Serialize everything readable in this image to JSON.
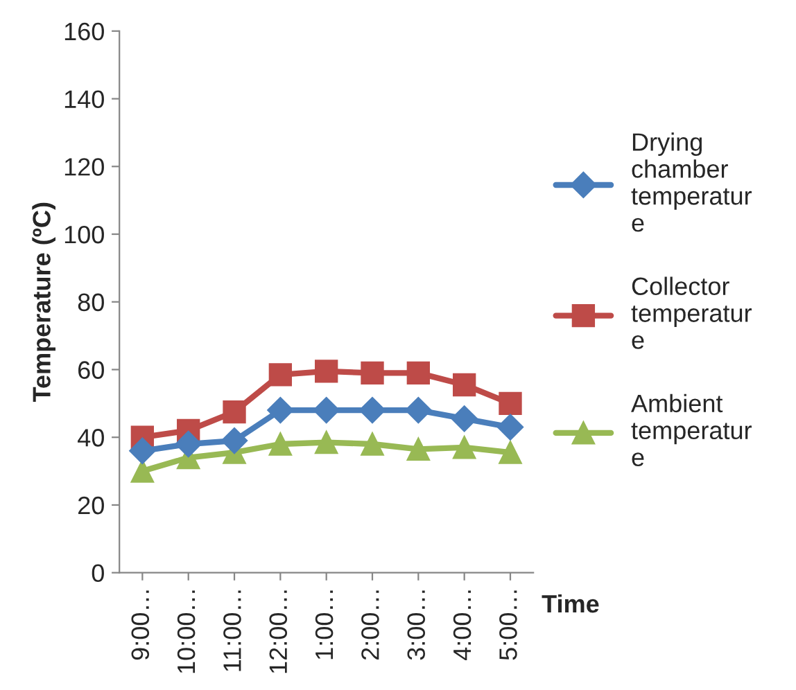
{
  "chart_data": {
    "type": "line",
    "xlabel": "Time",
    "ylabel": "Temperature (ºC)",
    "categories": [
      "9:00…",
      "10:00…",
      "11:00…",
      "12:00…",
      "1:00…",
      "2:00…",
      "3:00…",
      "4:00…",
      "5:00…"
    ],
    "series": [
      {
        "name": "Drying chamber temperature",
        "color": "#4a7ebb",
        "marker": "diamond",
        "values": [
          36,
          38,
          39,
          48,
          48,
          48,
          48,
          45.5,
          43
        ]
      },
      {
        "name": "Collector temperature",
        "color": "#be4b48",
        "marker": "square",
        "values": [
          40,
          42,
          47.5,
          58.5,
          59.5,
          59,
          59,
          55.5,
          50
        ]
      },
      {
        "name": "Ambient temperature",
        "color": "#98b954",
        "marker": "triangle",
        "values": [
          30,
          34,
          35.5,
          38,
          38.5,
          38,
          36.5,
          37,
          35.5
        ]
      }
    ],
    "ylim": [
      0,
      160
    ],
    "yticks": [
      0,
      20,
      40,
      60,
      80,
      100,
      120,
      140,
      160
    ],
    "grid": false,
    "legend": "right",
    "line_style": "solid"
  }
}
